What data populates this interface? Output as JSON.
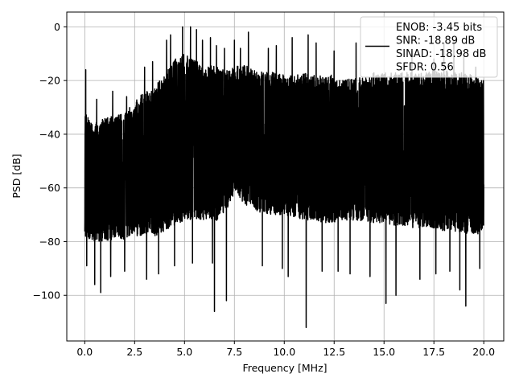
{
  "chart_data": {
    "type": "line",
    "title": "",
    "xlabel": "Frequency [MHz]",
    "ylabel": "PSD [dB]",
    "xlim": [
      -0.9,
      21.0
    ],
    "ylim": [
      -117,
      5.5
    ],
    "x_ticks": [
      0.0,
      2.5,
      5.0,
      7.5,
      10.0,
      12.5,
      15.0,
      17.5,
      20.0
    ],
    "x_tick_labels": [
      "0.0",
      "2.5",
      "5.0",
      "7.5",
      "10.0",
      "12.5",
      "15.0",
      "17.5",
      "20.0"
    ],
    "y_ticks": [
      0,
      -20,
      -40,
      -60,
      -80,
      -100
    ],
    "y_tick_labels": [
      "0",
      "−20",
      "−40",
      "−60",
      "−80",
      "−100"
    ],
    "grid": true,
    "legend_position": "top-right",
    "series": [
      {
        "name": "ENOB: -3.45 bits\nSNR: -18.89 dB\nSINAD: -18.98 dB\nSFDR: 0.56",
        "color": "#000000",
        "x_range": [
          0.0,
          20.0
        ],
        "envelope": {
          "x": [
            0.0,
            0.5,
            1.0,
            1.5,
            2.0,
            2.5,
            3.0,
            3.5,
            4.0,
            4.5,
            5.0,
            5.5,
            6.0,
            6.5,
            7.0,
            7.5,
            8.0,
            8.5,
            9.0,
            9.5,
            10.0,
            10.5,
            11.0,
            11.5,
            12.0,
            12.5,
            13.0,
            13.5,
            14.0,
            14.5,
            15.0,
            15.5,
            16.0,
            16.5,
            17.0,
            17.5,
            18.0,
            18.5,
            19.0,
            19.5,
            20.0
          ],
          "upper": [
            -32,
            -36,
            -34,
            -33,
            -32,
            -28,
            -24,
            -22,
            -18,
            -12,
            -10,
            -12,
            -15,
            -14,
            -16,
            -15,
            -14,
            -16,
            -17,
            -17,
            -18,
            -18,
            -17,
            -18,
            -18,
            -18,
            -20,
            -19,
            -19,
            -17,
            -17,
            -17,
            -17,
            -17,
            -17,
            -16,
            -16,
            -17,
            -17,
            -18,
            -20
          ],
          "lower": [
            -78,
            -80,
            -80,
            -79,
            -79,
            -78,
            -78,
            -78,
            -76,
            -74,
            -72,
            -72,
            -72,
            -73,
            -70,
            -62,
            -66,
            -68,
            -70,
            -70,
            -70,
            -71,
            -72,
            -72,
            -73,
            -73,
            -72,
            -72,
            -73,
            -73,
            -73,
            -74,
            -74,
            -75,
            -75,
            -75,
            -76,
            -76,
            -77,
            -77,
            -78
          ]
        },
        "peaks": [
          {
            "x": 0.05,
            "y": -16
          },
          {
            "x": 0.6,
            "y": -27
          },
          {
            "x": 1.4,
            "y": -24
          },
          {
            "x": 2.1,
            "y": -26
          },
          {
            "x": 3.0,
            "y": -15
          },
          {
            "x": 3.4,
            "y": -13
          },
          {
            "x": 4.1,
            "y": -5
          },
          {
            "x": 4.3,
            "y": -3
          },
          {
            "x": 4.9,
            "y": 0
          },
          {
            "x": 5.3,
            "y": 0
          },
          {
            "x": 5.6,
            "y": -1
          },
          {
            "x": 5.9,
            "y": -5
          },
          {
            "x": 6.3,
            "y": -4
          },
          {
            "x": 6.6,
            "y": -7
          },
          {
            "x": 7.0,
            "y": -8
          },
          {
            "x": 7.5,
            "y": -5
          },
          {
            "x": 7.8,
            "y": -8
          },
          {
            "x": 8.2,
            "y": -2
          },
          {
            "x": 9.2,
            "y": -8
          },
          {
            "x": 9.6,
            "y": -7
          },
          {
            "x": 10.4,
            "y": -4
          },
          {
            "x": 11.2,
            "y": -3
          },
          {
            "x": 11.6,
            "y": -6
          },
          {
            "x": 12.5,
            "y": -9
          },
          {
            "x": 13.6,
            "y": -6
          },
          {
            "x": 16.4,
            "y": -9
          },
          {
            "x": 17.5,
            "y": -12
          },
          {
            "x": 18.0,
            "y": -6
          },
          {
            "x": 18.5,
            "y": -5
          },
          {
            "x": 19.0,
            "y": -11
          },
          {
            "x": 19.6,
            "y": -15
          }
        ],
        "dips": [
          {
            "x": 0.1,
            "y": -89
          },
          {
            "x": 0.5,
            "y": -96
          },
          {
            "x": 0.8,
            "y": -99
          },
          {
            "x": 1.3,
            "y": -93
          },
          {
            "x": 2.0,
            "y": -91
          },
          {
            "x": 3.1,
            "y": -94
          },
          {
            "x": 3.7,
            "y": -92
          },
          {
            "x": 4.5,
            "y": -89
          },
          {
            "x": 5.4,
            "y": -88
          },
          {
            "x": 6.4,
            "y": -88
          },
          {
            "x": 6.5,
            "y": -106
          },
          {
            "x": 7.1,
            "y": -102
          },
          {
            "x": 8.9,
            "y": -89
          },
          {
            "x": 9.9,
            "y": -90
          },
          {
            "x": 10.2,
            "y": -93
          },
          {
            "x": 11.1,
            "y": -112
          },
          {
            "x": 11.9,
            "y": -91
          },
          {
            "x": 12.7,
            "y": -91
          },
          {
            "x": 13.3,
            "y": -92
          },
          {
            "x": 14.3,
            "y": -93
          },
          {
            "x": 15.1,
            "y": -103
          },
          {
            "x": 15.6,
            "y": -100
          },
          {
            "x": 16.8,
            "y": -94
          },
          {
            "x": 17.6,
            "y": -92
          },
          {
            "x": 18.3,
            "y": -91
          },
          {
            "x": 18.8,
            "y": -98
          },
          {
            "x": 19.1,
            "y": -104
          },
          {
            "x": 19.8,
            "y": -90
          }
        ]
      }
    ]
  }
}
